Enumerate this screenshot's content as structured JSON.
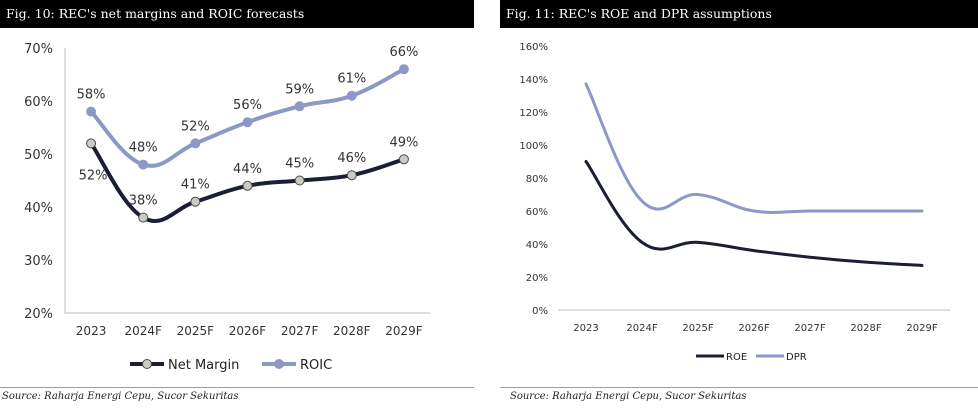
{
  "colors": {
    "net_margin": "#1b1f33",
    "roic": "#8d98c6",
    "roe": "#1b1f33",
    "dpr": "#8d98c6",
    "header_bg": "#000000",
    "axis_text": "#333333"
  },
  "left": {
    "header": "Fig. 10: REC's net margins and ROIC forecasts",
    "source": "Source: Raharja Energi Cepu, Sucor Sekuritas"
  },
  "right": {
    "header": "Fig. 11: REC's ROE and DPR assumptions",
    "source": "Source: Raharja Energi Cepu, Sucor Sekuritas"
  },
  "chart_data": [
    {
      "type": "line",
      "title": "",
      "categories": [
        "2023",
        "2024F",
        "2025F",
        "2026F",
        "2027F",
        "2028F",
        "2029F"
      ],
      "series": [
        {
          "name": "Net Margin",
          "values": [
            52,
            38,
            41,
            44,
            45,
            46,
            49
          ],
          "labels": [
            "52%",
            "38%",
            "41%",
            "44%",
            "45%",
            "46%",
            "49%"
          ]
        },
        {
          "name": "ROIC",
          "values": [
            58,
            48,
            52,
            56,
            59,
            61,
            66
          ],
          "labels": [
            "58%",
            "48%",
            "52%",
            "56%",
            "59%",
            "61%",
            "66%"
          ]
        }
      ],
      "ylim": [
        20,
        70
      ],
      "yticks": [
        "20%",
        "30%",
        "40%",
        "50%",
        "60%",
        "70%"
      ],
      "grid": false,
      "legend": "bottom",
      "markers": true
    },
    {
      "type": "line",
      "title": "",
      "categories": [
        "2023",
        "2024F",
        "2025F",
        "2026F",
        "2027F",
        "2028F",
        "2029F"
      ],
      "series": [
        {
          "name": "ROE",
          "values": [
            90,
            41,
            41,
            36,
            32,
            29,
            27
          ]
        },
        {
          "name": "DPR",
          "values": [
            137,
            66,
            70,
            60,
            60,
            60,
            60
          ]
        }
      ],
      "ylim": [
        0,
        160
      ],
      "yticks": [
        "0%",
        "20%",
        "40%",
        "60%",
        "80%",
        "100%",
        "120%",
        "140%",
        "160%"
      ],
      "grid": false,
      "legend": "bottom",
      "markers": false
    }
  ]
}
